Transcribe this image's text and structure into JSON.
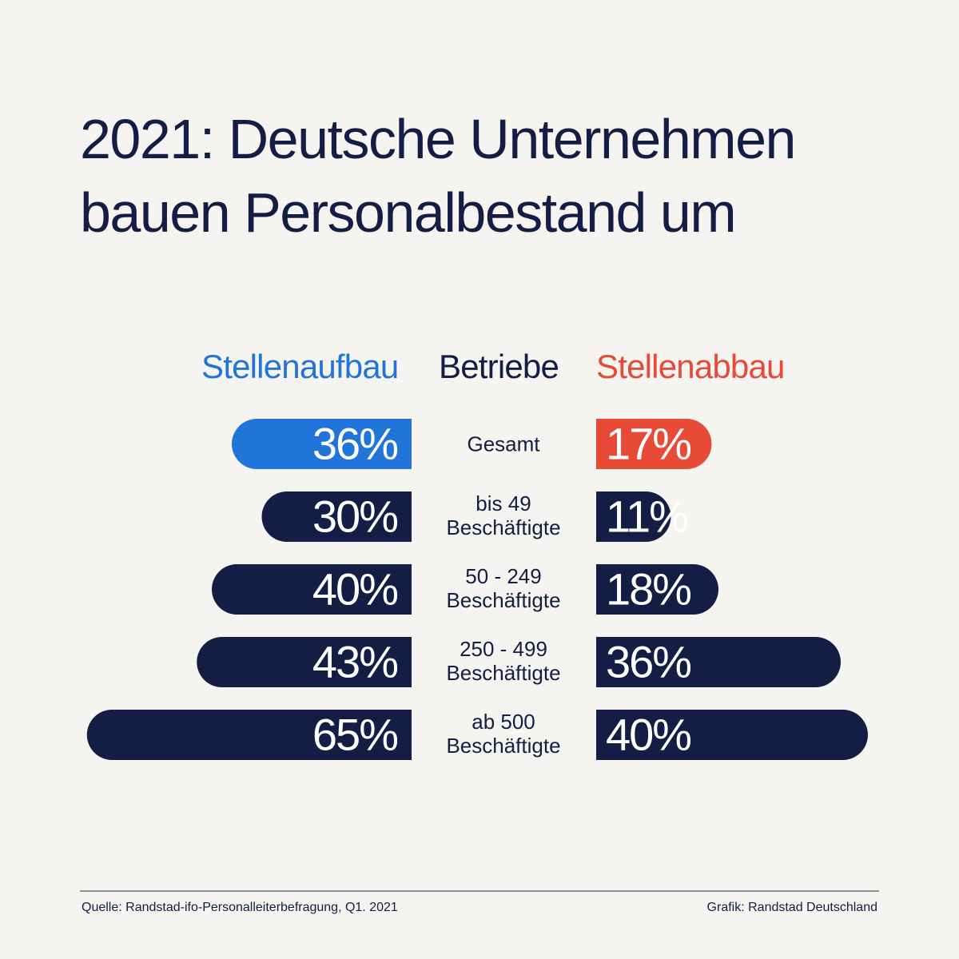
{
  "title_lines": [
    "2021: Deutsche Unternehmen",
    "bauen Personalbestand um"
  ],
  "colors": {
    "background": "#f6f4f0",
    "navy": "#141d44",
    "blue": "#2175d9",
    "red": "#e84a38",
    "divider": "#8d8f99"
  },
  "chart_data": {
    "type": "bar",
    "layout": "diverging-horizontal",
    "columns": {
      "left": "Stellenaufbau",
      "center": "Betriebe",
      "right": "Stellenabbau"
    },
    "categories": [
      [
        "Gesamt"
      ],
      [
        "bis 49",
        "Beschäftigte"
      ],
      [
        "50 - 249",
        "Beschäftigte"
      ],
      [
        "250 - 499",
        "Beschäftigte"
      ],
      [
        "ab 500",
        "Beschäftigte"
      ]
    ],
    "series": [
      {
        "name": "Stellenaufbau",
        "values": [
          36,
          30,
          40,
          43,
          65
        ],
        "labels": [
          "36%",
          "30%",
          "40%",
          "43%",
          "65%"
        ]
      },
      {
        "name": "Stellenabbau",
        "values": [
          17,
          11,
          18,
          36,
          40
        ],
        "labels": [
          "17%",
          "11%",
          "18%",
          "36%",
          "40%"
        ]
      }
    ],
    "unit": "%",
    "highlight_category": "Gesamt"
  },
  "footer": {
    "source": "Quelle: Randstad-ifo-Personalleiterbefragung, Q1. 2021",
    "credit": "Grafik: Randstad Deutschland"
  }
}
